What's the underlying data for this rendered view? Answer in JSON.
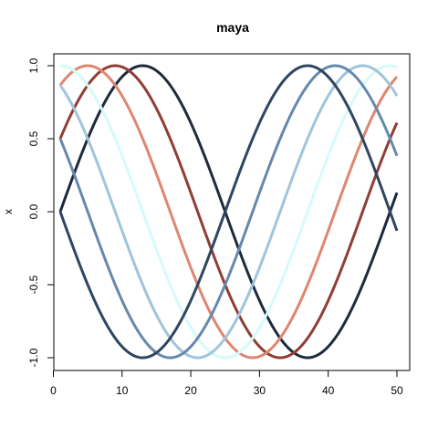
{
  "chart_data": {
    "type": "line",
    "title": "maya",
    "xlabel": "",
    "ylabel": "x",
    "xlim": [
      1,
      50
    ],
    "ylim": [
      -1,
      1
    ],
    "x_ticks": [
      0,
      10,
      20,
      30,
      40,
      50
    ],
    "x_tick_labels": [
      "0",
      "10",
      "20",
      "30",
      "40",
      "50"
    ],
    "y_ticks": [
      -1,
      -0.5,
      0,
      0.5,
      1
    ],
    "y_tick_labels": [
      "-1.0",
      "-0.5",
      "0.0",
      "0.5",
      "1.0"
    ],
    "grid": false,
    "legend": "none",
    "series": [
      {
        "color": "#1f2a3c",
        "x": [
          1,
          5,
          9,
          13,
          17,
          21,
          25,
          29,
          33,
          37,
          41,
          45,
          49,
          50
        ],
        "y": [
          0.0,
          0.5,
          0.866,
          1.0,
          0.866,
          0.5,
          0.0,
          -0.5,
          -0.866,
          -1.0,
          -0.866,
          -0.5,
          0.0,
          0.0
        ]
      },
      {
        "color": "#8f3e35",
        "x": [
          1,
          5,
          9,
          13,
          17,
          21,
          25,
          29,
          33,
          37,
          41,
          45,
          49,
          50
        ],
        "y": [
          0.5,
          0.866,
          1.0,
          0.866,
          0.5,
          0.0,
          -0.5,
          -0.866,
          -1.0,
          -0.866,
          -0.5,
          0.0,
          0.5,
          0.5
        ]
      },
      {
        "color": "#de8670",
        "x": [
          1,
          5,
          9,
          13,
          17,
          21,
          25,
          29,
          33,
          37,
          41,
          45,
          49,
          50
        ],
        "y": [
          0.866,
          1.0,
          0.866,
          0.5,
          0.0,
          -0.5,
          -0.866,
          -1.0,
          -0.866,
          -0.5,
          0.0,
          0.5,
          0.866,
          0.866
        ]
      },
      {
        "color": "#d6fafa",
        "x": [
          1,
          5,
          9,
          13,
          17,
          21,
          25,
          29,
          33,
          37,
          41,
          45,
          49,
          50
        ],
        "y": [
          1.0,
          0.866,
          0.5,
          0.0,
          -0.5,
          -0.866,
          -1.0,
          -0.866,
          -0.5,
          0.0,
          0.5,
          0.866,
          1.0,
          1.0
        ]
      },
      {
        "color": "#9fc5db",
        "x": [
          1,
          5,
          9,
          13,
          17,
          21,
          25,
          29,
          33,
          37,
          41,
          45,
          49,
          50
        ],
        "y": [
          0.866,
          0.5,
          0.0,
          -0.5,
          -0.866,
          -1.0,
          -0.866,
          -0.5,
          0.0,
          0.5,
          0.866,
          1.0,
          0.866,
          0.866
        ]
      },
      {
        "color": "#6689ab",
        "x": [
          1,
          5,
          9,
          13,
          17,
          21,
          25,
          29,
          33,
          37,
          41,
          45,
          49,
          50
        ],
        "y": [
          0.5,
          0.0,
          -0.5,
          -0.866,
          -1.0,
          -0.866,
          -0.5,
          0.0,
          0.5,
          0.866,
          1.0,
          0.866,
          0.5,
          0.5
        ]
      },
      {
        "color": "#2f4561",
        "x": [
          1,
          5,
          9,
          13,
          17,
          21,
          25,
          29,
          33,
          37,
          41,
          45,
          49,
          50
        ],
        "y": [
          0.0,
          -0.5,
          -0.866,
          -1.0,
          -0.866,
          -0.5,
          0.0,
          0.5,
          0.866,
          1.0,
          0.866,
          0.5,
          0.0,
          0.0
        ]
      }
    ]
  }
}
